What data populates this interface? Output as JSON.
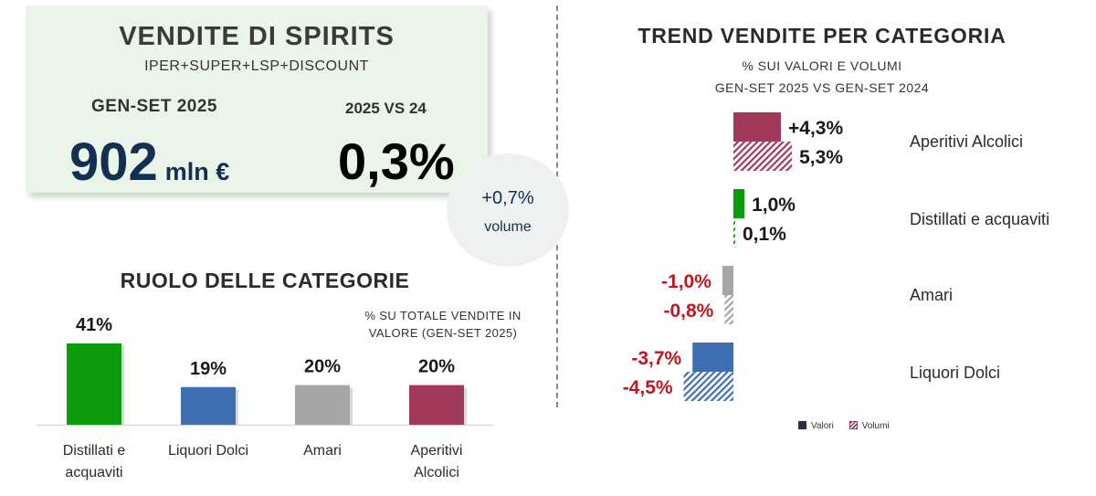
{
  "kpi": {
    "title": "VENDITE DI SPIRITS",
    "subtitle": "IPER+SUPER+LSP+DISCOUNT",
    "period_label": "GEN-SET 2025",
    "value": "902",
    "unit": "mln €",
    "compare_label": "2025 VS 24",
    "change_value": "0,3%"
  },
  "volume_badge": {
    "value": "+0,7%",
    "label": "volume"
  },
  "chart_data": [
    {
      "type": "bar",
      "title": "RUOLO DELLE CATEGORIE",
      "subtitle": "% SU TOTALE VENDITE IN VALORE (GEN-SET 2025)",
      "categories": [
        "Distillati e acquaviti",
        "Liquori Dolci",
        "Amari",
        "Aperitivi Alcolici"
      ],
      "values": [
        41,
        19,
        20,
        20
      ],
      "value_labels": [
        "41%",
        "19%",
        "20%",
        "20%"
      ],
      "colors": [
        "#0b9b0b",
        "#3f6eb3",
        "#a6a6a6",
        "#a13a5a"
      ],
      "ylim": [
        0,
        45
      ]
    },
    {
      "type": "bar",
      "orientation": "horizontal",
      "title": "TREND VENDITE PER CATEGORIA",
      "subtitle_lines": [
        "% SUI VALORI E VOLUMI",
        "GEN-SET 2025 VS GEN-SET 2024"
      ],
      "categories": [
        "Aperitivi Alcolici",
        "Distillati e acquaviti",
        "Amari",
        "Liquori Dolci"
      ],
      "series": [
        {
          "name": "Valori",
          "values": [
            4.3,
            1.0,
            -1.0,
            -3.7
          ],
          "labels": [
            "+4,3%",
            "1,0%",
            "-1,0%",
            "-3,7%"
          ]
        },
        {
          "name": "Volumi",
          "values": [
            5.3,
            0.1,
            -0.8,
            -4.5
          ],
          "labels": [
            "5,3%",
            "0,1%",
            "-0,8%",
            "-4,5%"
          ]
        }
      ],
      "colors": [
        "#a13a5a",
        "#0b9b0b",
        "#a6a6a6",
        "#3f6eb3"
      ],
      "positive_label_color": "#1a1a1a",
      "negative_label_color": "#c0161d",
      "legend": {
        "position": "bottom",
        "items": [
          "Valori",
          "Volumi"
        ]
      }
    }
  ]
}
